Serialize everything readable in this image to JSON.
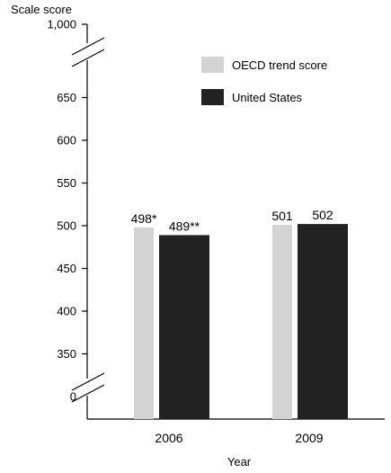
{
  "chart_data": {
    "type": "bar",
    "ylabel": "Scale score",
    "xlabel": "Year",
    "categories": [
      "2006",
      "2009"
    ],
    "series": [
      {
        "name": "OECD trend score",
        "values": [
          498,
          501
        ],
        "labels": [
          "498*",
          "501"
        ],
        "color": "#d3d3d3"
      },
      {
        "name": "United States",
        "values": [
          489,
          502
        ],
        "labels": [
          "489**",
          "502"
        ],
        "color": "#222222"
      }
    ],
    "ylim": [
      300,
      700
    ],
    "y_ticks": [
      350,
      400,
      450,
      500,
      550,
      600,
      650
    ],
    "y_tick_labels": [
      "350",
      "400",
      "450",
      "500",
      "550",
      "600",
      "650"
    ],
    "y_top_label": "1,000",
    "y_zero_label": "0",
    "axis_breaks": true,
    "grid": false,
    "legend_position": "top-right"
  }
}
